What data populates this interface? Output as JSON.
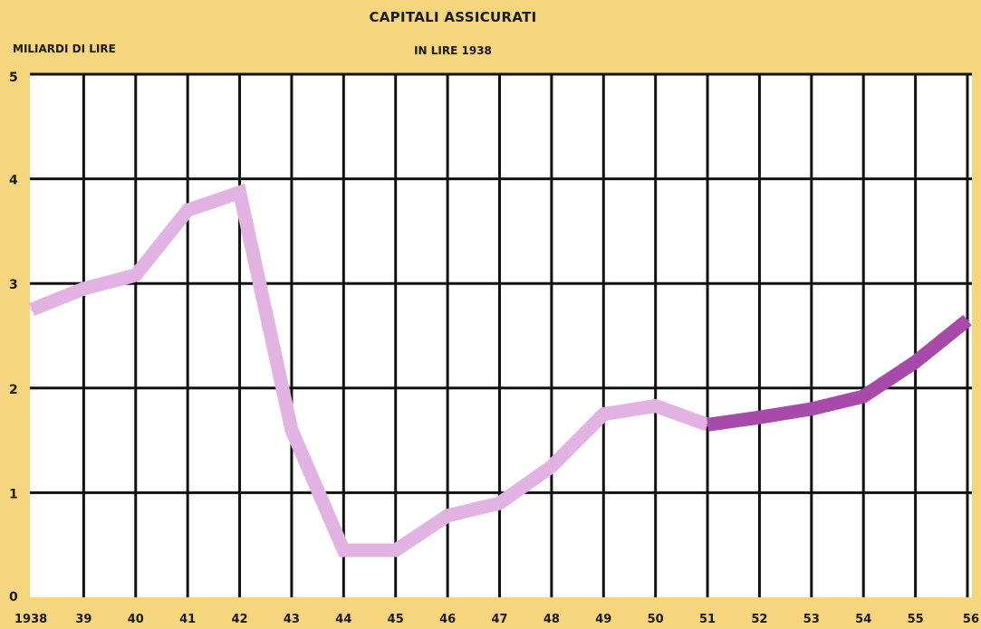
{
  "chart_data": {
    "type": "line",
    "title": "CAPITALI ASSICURATI",
    "subtitle": "IN LIRE 1938",
    "ylabel": "MILIARDI DI LIRE",
    "xlabel": "",
    "ylim": [
      0,
      5
    ],
    "yticks": [
      "0",
      "1",
      "2",
      "3",
      "4",
      "5"
    ],
    "categories": [
      "1938",
      "39",
      "40",
      "41",
      "42",
      "43",
      "44",
      "45",
      "46",
      "47",
      "48",
      "49",
      "50",
      "51",
      "52",
      "53",
      "54",
      "55",
      "56"
    ],
    "series": [
      {
        "values": [
          2.75,
          2.95,
          3.08,
          3.7,
          3.87,
          1.6,
          0.45,
          0.45,
          0.78,
          0.9,
          1.25,
          1.75,
          1.83,
          1.65,
          null,
          null,
          null,
          null,
          null
        ],
        "color": "#e2b2e2"
      },
      {
        "values": [
          null,
          null,
          null,
          null,
          null,
          null,
          null,
          null,
          null,
          null,
          null,
          null,
          null,
          1.65,
          1.72,
          1.8,
          1.92,
          2.25,
          2.65
        ],
        "color": "#a84aaa"
      }
    ],
    "grid": true,
    "legend": "none"
  },
  "colors": {
    "background": "#f5d67e",
    "panel": "#ffffff",
    "grid": "#111111",
    "text": "#1a1a1a"
  }
}
